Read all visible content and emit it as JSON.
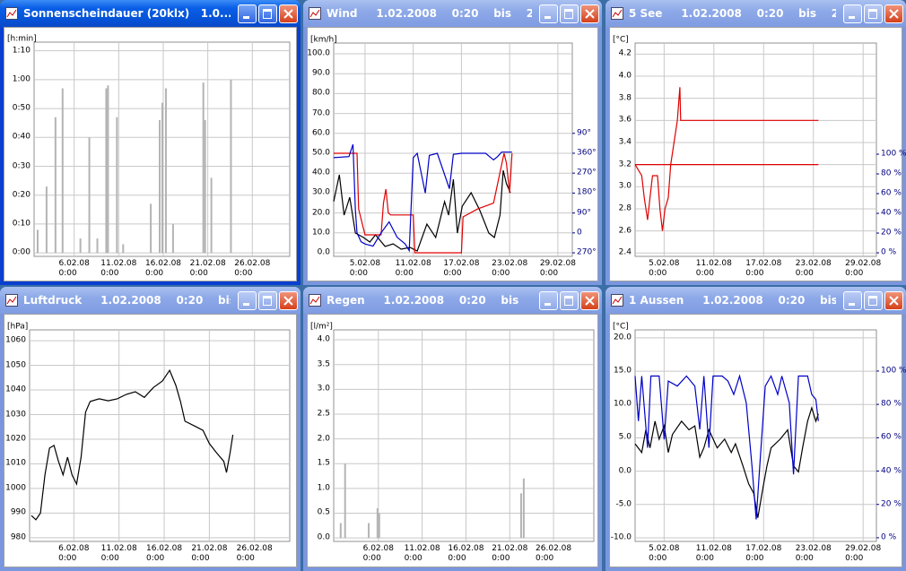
{
  "chart_data": [
    {
      "type": "bar",
      "title": "Sonnenscheindauer (20klx)   1.0...",
      "ylabel": "[h:min]",
      "x": [
        1.9,
        2.9,
        3.9,
        4.7,
        6.7,
        7.7,
        8.6,
        9.6,
        9.8,
        10.8,
        11.5,
        14.6,
        15.6,
        15.9,
        16.3,
        17.1,
        20.5,
        20.7,
        21.4,
        23.6
      ],
      "values": [
        8,
        23,
        47,
        57,
        5,
        40,
        5,
        57,
        58,
        47,
        3,
        17,
        46,
        52,
        57,
        10,
        59,
        46,
        26,
        60
      ],
      "color": "#b4b4b4",
      "xlim": [
        1.5,
        30.2
      ],
      "ylim": [
        -1.2,
        73
      ],
      "xticks": [
        {
          "value": 6,
          "label": "6.02.08\n0:00"
        },
        {
          "value": 11,
          "label": "11.02.08\n0:00"
        },
        {
          "value": 16,
          "label": "16.02.08\n0:00"
        },
        {
          "value": 21,
          "label": "21.02.08\n0:00"
        },
        {
          "value": 26,
          "label": "26.02.08\n0:00"
        }
      ],
      "yticks": [
        {
          "value": 0,
          "label": "0:00"
        },
        {
          "value": 10,
          "label": "0:10"
        },
        {
          "value": 20,
          "label": "0:20"
        },
        {
          "value": 30,
          "label": "0:30"
        },
        {
          "value": 40,
          "label": "0:40"
        },
        {
          "value": 50,
          "label": "0:50"
        },
        {
          "value": 60,
          "label": "1:00"
        },
        {
          "value": 70,
          "label": "1:10"
        }
      ],
      "grid": true
    },
    {
      "type": "line",
      "title": "Wind     1.02.2008    0:20    bis    2...",
      "ylabel": "[km/h]",
      "series": [
        {
          "color": "#000000",
          "x": [
            1.1,
            1.8,
            2.4,
            3.1,
            3.8,
            4.8,
            5.6,
            6.3,
            7.5,
            8.5,
            9.5,
            10.6,
            11.5,
            12.7,
            13.8,
            14.9,
            15.4,
            16.0,
            16.5,
            17.1,
            18.2,
            19.3,
            20.4,
            21.1,
            21.8,
            22.2,
            22.6,
            23.1
          ],
          "values": [
            25.7,
            39.2,
            18.9,
            27.9,
            9.9,
            7.7,
            5.4,
            9,
            3.2,
            4.5,
            1.8,
            2.7,
            0.9,
            14.4,
            7.7,
            25.7,
            18.9,
            36.9,
            9.9,
            23.4,
            30.2,
            21.2,
            9.9,
            7.7,
            18.9,
            41.4,
            34.7,
            30.2
          ]
        },
        {
          "color": "#e00000",
          "x": [
            1.1,
            4.0,
            4.2,
            5.0,
            7.0,
            7.3,
            7.6,
            7.9,
            8.2,
            11.0,
            11.2,
            17.0,
            17.2,
            19.0,
            21.0,
            22.3,
            22.6,
            23.0,
            23.3
          ],
          "values": [
            50,
            50,
            22,
            9,
            9,
            25,
            32,
            20,
            19,
            19,
            0,
            0,
            18,
            22,
            25,
            50,
            45,
            30,
            50
          ]
        },
        {
          "color": "#0000c8",
          "axis": "y2",
          "x": [
            1.1,
            3.0,
            3.5,
            3.8,
            4.0,
            4.5,
            5.0,
            6.0,
            7.0,
            8.0,
            9.0,
            10.0,
            10.5,
            11.0,
            11.5,
            12.5,
            13.0,
            14.0,
            15.5,
            16.0,
            17.0,
            19.0,
            20.0,
            21.0,
            21.5,
            22.0,
            23.3
          ],
          "values": [
            340,
            345,
            400,
            100,
            0,
            -40,
            -50,
            -60,
            0,
            50,
            -20,
            -50,
            -80,
            340,
            360,
            180,
            350,
            360,
            200,
            355,
            360,
            360,
            360,
            330,
            345,
            365,
            365
          ]
        }
      ],
      "xlim": [
        1.1,
        30.8
      ],
      "ylim": [
        -1.8,
        105.4
      ],
      "y2lim": [
        -106,
        858
      ],
      "y2tick_color": "#000080",
      "xticks": [
        {
          "value": 5,
          "label": "5.02.08\n0:00"
        },
        {
          "value": 11,
          "label": "11.02.08\n0:00"
        },
        {
          "value": 17,
          "label": "17.02.08\n0:00"
        },
        {
          "value": 23,
          "label": "23.02.08\n0:00"
        },
        {
          "value": 29,
          "label": "29.02.08\n0:00"
        }
      ],
      "yticks": [
        {
          "value": 0,
          "label": "0.0"
        },
        {
          "value": 10,
          "label": "10.0"
        },
        {
          "value": 20,
          "label": "20.0"
        },
        {
          "value": 30,
          "label": "30.0"
        },
        {
          "value": 40,
          "label": "40.0"
        },
        {
          "value": 50,
          "label": "50.0"
        },
        {
          "value": 60,
          "label": "60.0"
        },
        {
          "value": 70,
          "label": "70.0"
        },
        {
          "value": 80,
          "label": "80.0"
        },
        {
          "value": 90,
          "label": "90.0"
        },
        {
          "value": 100,
          "label": "100.0"
        }
      ],
      "y2ticks": [
        {
          "value": -90,
          "label": "270°"
        },
        0,
        {
          "value": 90,
          "label": "90°"
        },
        {
          "value": 180,
          "label": "180°"
        },
        {
          "value": 270,
          "label": "270°"
        },
        {
          "value": 360,
          "label": "360°"
        },
        {
          "value": 450,
          "label": "90°"
        }
      ],
      "grid": true
    },
    {
      "type": "line",
      "title": "5 See     1.02.2008    0:20    bis    2...",
      "ylabel": "[°C]",
      "series": [
        {
          "color": "#e00000",
          "x": [
            1.5,
            23.6
          ],
          "values": [
            3.2,
            3.2
          ]
        },
        {
          "color": "#e00000",
          "x": [
            1.5,
            2.3,
            2.6,
            3.0,
            3.3,
            3.6,
            4.2,
            4.5,
            4.8,
            5.1,
            5.5,
            5.8,
            6.2,
            6.6,
            6.9,
            7.0,
            23.6
          ],
          "values": [
            3.2,
            3.1,
            2.9,
            2.7,
            2.9,
            3.1,
            3.1,
            2.8,
            2.6,
            2.8,
            2.9,
            3.2,
            3.4,
            3.6,
            3.9,
            3.6,
            3.6
          ]
        }
      ],
      "xlim": [
        1.5,
        30.6
      ],
      "ylim": [
        2.37,
        4.3
      ],
      "y2lim": [
        -3.6,
        212.7
      ],
      "y2tick_color": "#000080",
      "xticks": [
        {
          "value": 5,
          "label": "5.02.08\n0:00"
        },
        {
          "value": 11,
          "label": "11.02.08\n0:00"
        },
        {
          "value": 17,
          "label": "17.02.08\n0:00"
        },
        {
          "value": 23,
          "label": "23.02.08\n0:00"
        },
        {
          "value": 29,
          "label": "29.02.08\n0:00"
        }
      ],
      "yticks": [
        2.4,
        2.6,
        2.8,
        {
          "value": 3,
          "label": "3.0"
        },
        3.2,
        3.4,
        3.6,
        3.8,
        {
          "value": 4,
          "label": "4.0"
        },
        4.2
      ],
      "y2ticks": [
        {
          "value": 0,
          "label": "0 %"
        },
        {
          "value": 20,
          "label": "20 %"
        },
        {
          "value": 40,
          "label": "40 %"
        },
        {
          "value": 60,
          "label": "60 %"
        },
        {
          "value": 80,
          "label": "80 %"
        },
        {
          "value": 100,
          "label": "100 %"
        }
      ],
      "grid": true
    },
    {
      "type": "line",
      "title": "Luftdruck     1.02.2008    0:20    bis...",
      "ylabel": "[hPa]",
      "series": [
        {
          "color": "#000000",
          "x": [
            1.3,
            1.8,
            2.3,
            2.8,
            3.3,
            3.8,
            4.3,
            4.8,
            5.3,
            5.8,
            6.3,
            6.8,
            7.3,
            7.8,
            8.8,
            9.8,
            10.8,
            11.8,
            12.8,
            13.8,
            14.8,
            15.8,
            16.6,
            17.3,
            17.8,
            18.3,
            19.3,
            20.3,
            21.0,
            21.8,
            22.6,
            22.9,
            23.3,
            23.6
          ],
          "values": [
            989,
            987.3,
            990,
            1005.5,
            1016.4,
            1017.5,
            1011,
            1005.5,
            1012.7,
            1005.5,
            1001.8,
            1012.7,
            1031,
            1035.3,
            1036.4,
            1035.6,
            1036.4,
            1038.2,
            1039.3,
            1037,
            1041,
            1043.6,
            1048,
            1041.8,
            1035.3,
            1027.3,
            1025.5,
            1023.6,
            1018.2,
            1014.5,
            1011,
            1006.5,
            1014.5,
            1021.8
          ]
        }
      ],
      "xlim": [
        1.1,
        29.9
      ],
      "ylim": [
        978.5,
        1064.4
      ],
      "xticks": [
        {
          "value": 6,
          "label": "6.02.08\n0:00"
        },
        {
          "value": 11,
          "label": "11.02.08\n0:00"
        },
        {
          "value": 16,
          "label": "16.02.08\n0:00"
        },
        {
          "value": 21,
          "label": "21.02.08\n0:00"
        },
        {
          "value": 26,
          "label": "26.02.08\n0:00"
        }
      ],
      "yticks": [
        980,
        990,
        1000,
        1010,
        1020,
        1030,
        1040,
        1050,
        1060
      ],
      "grid": true
    },
    {
      "type": "bar",
      "title": "Regen     1.02.2008    0:20    bis    2...",
      "ylabel": "[l/m²]",
      "x": [
        1.7,
        2.2,
        4.9,
        5.9,
        6.1,
        22.3,
        22.6
      ],
      "values": [
        0.3,
        1.5,
        0.3,
        0.6,
        0.5,
        0.9,
        1.2
      ],
      "color": "#b4b4b4",
      "xlim": [
        0.9,
        30.6
      ],
      "ylim": [
        -0.07,
        4.2
      ],
      "xticks": [
        {
          "value": 6,
          "label": "6.02.08\n0:00"
        },
        {
          "value": 11,
          "label": "11.02.08\n0:00"
        },
        {
          "value": 16,
          "label": "16.02.08\n0:00"
        },
        {
          "value": 21,
          "label": "21.02.08\n0:00"
        },
        {
          "value": 26,
          "label": "26.02.08\n0:00"
        }
      ],
      "yticks": [
        {
          "value": 0,
          "label": "0.0"
        },
        0.5,
        {
          "value": 1,
          "label": "1.0"
        },
        1.5,
        {
          "value": 2,
          "label": "2.0"
        },
        2.5,
        {
          "value": 3,
          "label": "3.0"
        },
        3.5,
        {
          "value": 4,
          "label": "4.0"
        }
      ],
      "grid": true
    },
    {
      "type": "line",
      "title": "1 Aussen     1.02.2008    0:20    bis...",
      "ylabel": "[°C]",
      "series": [
        {
          "color": "#000000",
          "x": [
            1.5,
            2.3,
            2.8,
            3.3,
            3.9,
            4.4,
            5.0,
            5.5,
            6.0,
            7.1,
            8.0,
            8.7,
            9.3,
            9.8,
            10.4,
            11.4,
            12.3,
            13.1,
            13.6,
            14.5,
            15.2,
            15.8,
            16.3,
            16.9,
            17.4,
            17.9,
            19.0,
            19.9,
            20.6,
            21.2,
            21.7,
            22.3,
            22.8,
            23.3,
            23.6
          ],
          "values": [
            4.1,
            2.8,
            6.2,
            3.5,
            7.5,
            4.8,
            6.8,
            2.8,
            5.5,
            7.5,
            6.2,
            6.8,
            2.1,
            3.5,
            6.2,
            3.5,
            4.8,
            2.8,
            4.1,
            0.8,
            -1.9,
            -3.3,
            -7,
            -2.6,
            0.8,
            3.5,
            4.8,
            6.2,
            0.8,
            -0.1,
            3.5,
            7.5,
            9.5,
            7.5,
            8.6
          ]
        },
        {
          "color": "#0000c8",
          "axis": "y2",
          "x": [
            1.5,
            1.9,
            2.3,
            3.0,
            3.4,
            4.4,
            5.0,
            5.5,
            6.6,
            7.7,
            8.7,
            9.3,
            9.8,
            10.4,
            10.9,
            12.0,
            12.7,
            13.4,
            14.1,
            14.9,
            15.6,
            16.1,
            16.6,
            17.2,
            17.9,
            18.7,
            19.2,
            20.1,
            20.6,
            21.2,
            22.3,
            22.8,
            23.3,
            23.6
          ],
          "values": [
            97,
            70,
            97,
            54,
            97,
            97,
            59,
            94,
            91,
            97,
            91,
            65,
            97,
            54,
            97,
            97,
            94,
            86,
            97,
            81,
            43,
            11,
            48,
            91,
            97,
            86,
            97,
            81,
            38,
            97,
            97,
            86,
            83,
            70
          ]
        }
      ],
      "xlim": [
        1.5,
        30.6
      ],
      "ylim": [
        -10.54,
        21.2
      ],
      "y2lim": [
        -2.2,
        124.7
      ],
      "y2tick_color": "#000080",
      "xticks": [
        {
          "value": 5,
          "label": "5.02.08\n0:00"
        },
        {
          "value": 11,
          "label": "11.02.08\n0:00"
        },
        {
          "value": 17,
          "label": "17.02.08\n0:00"
        },
        {
          "value": 23,
          "label": "23.02.08\n0:00"
        },
        {
          "value": 29,
          "label": "29.02.08\n0:00"
        }
      ],
      "yticks": [
        {
          "value": -10,
          "label": "-10.0"
        },
        {
          "value": -5,
          "label": "-5.0"
        },
        {
          "value": 0,
          "label": "0.0"
        },
        {
          "value": 5,
          "label": "5.0"
        },
        {
          "value": 10,
          "label": "10.0"
        },
        {
          "value": 15,
          "label": "15.0"
        },
        {
          "value": 20,
          "label": "20.0"
        }
      ],
      "y2ticks": [
        {
          "value": 0,
          "label": "0 %"
        },
        {
          "value": 20,
          "label": "20 %"
        },
        {
          "value": 40,
          "label": "40 %"
        },
        {
          "value": 60,
          "label": "60 %"
        },
        {
          "value": 80,
          "label": "80 %"
        },
        {
          "value": 100,
          "label": "100 %"
        }
      ],
      "grid": true
    }
  ]
}
